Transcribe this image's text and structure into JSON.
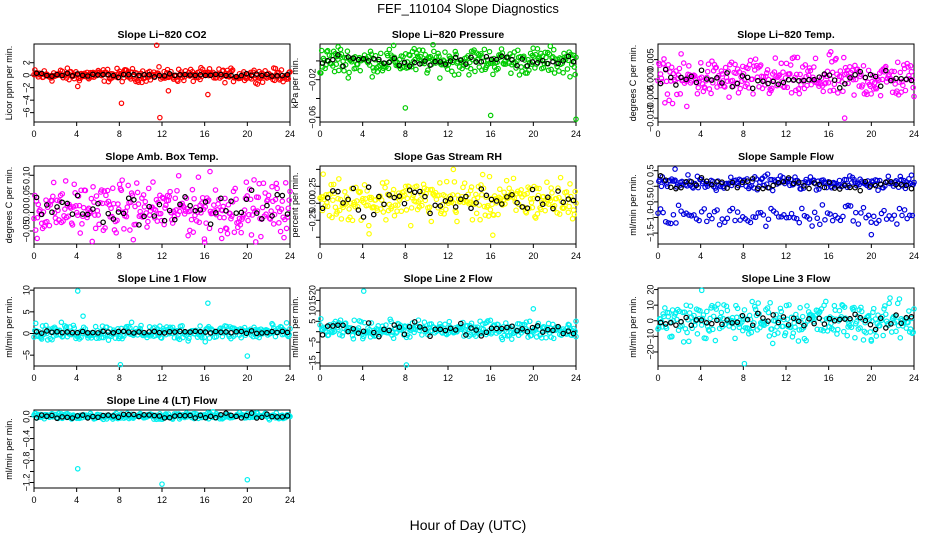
{
  "figure": {
    "title": "FEF_110104  Slope Diagnostics",
    "xlabel": "Hour of Day (UTC)"
  },
  "chart_data": [
    {
      "type": "scatter",
      "title": "Slope Li−820 CO2",
      "ylabel": "Licor ppm per min.",
      "color": "#ff0000",
      "xlim": [
        0,
        24
      ],
      "ylim": [
        -7.5,
        5
      ],
      "xticks": [
        0,
        4,
        8,
        12,
        16,
        20,
        24
      ],
      "yticks": [
        -6,
        -4,
        -2,
        0,
        2
      ],
      "ytick_labels": [
        "−6",
        "−4",
        "−2",
        "0",
        "2"
      ],
      "center": 0,
      "spread": 0.5,
      "black_spread": 0.15,
      "outliers": [
        [
          4.1,
          -1.8
        ],
        [
          8.2,
          -4.5
        ],
        [
          11.8,
          -6.8
        ],
        [
          11.5,
          4.8
        ],
        [
          12.6,
          -2.5
        ],
        [
          16.3,
          -3.1
        ]
      ]
    },
    {
      "type": "scatter",
      "title": "Slope Li−820 Pressure",
      "ylabel": "kPa per min.",
      "color": "#00cc00",
      "xlim": [
        0,
        24
      ],
      "ylim": [
        -0.065,
        0.018
      ],
      "xticks": [
        0,
        4,
        8,
        12,
        16,
        20,
        24
      ],
      "yticks": [
        -0.06,
        -0.04,
        -0.02,
        0
      ],
      "ytick_labels": [
        "−0.06",
        "",
        "−0.02",
        ""
      ],
      "center": 0,
      "spread": 0.007,
      "black_spread": 0.003,
      "outliers": [
        [
          8,
          -0.05
        ],
        [
          16,
          -0.058
        ],
        [
          24,
          -0.062
        ],
        [
          1.7,
          0.015
        ]
      ]
    },
    {
      "type": "scatter",
      "title": "Slope Li−820 Temp.",
      "ylabel": "degrees C per min.",
      "color": "#ff00ff",
      "xlim": [
        0,
        24
      ],
      "ylim": [
        -0.011,
        0.009
      ],
      "xticks": [
        0,
        4,
        8,
        12,
        16,
        20,
        24
      ],
      "yticks": [
        -0.01,
        -0.005,
        0,
        0.005
      ],
      "ytick_labels": [
        "−0.010",
        "−0.005",
        "0.000",
        "0.005"
      ],
      "center": 0,
      "spread": 0.0025,
      "black_spread": 0.0012,
      "outliers": [
        [
          17.5,
          -0.01
        ],
        [
          2.7,
          -0.007
        ],
        [
          16.2,
          0.007
        ]
      ]
    },
    {
      "type": "scatter",
      "title": "Slope Amb. Box Temp.",
      "ylabel": "degrees C per min.",
      "color": "#ff00ff",
      "xlim": [
        0,
        24
      ],
      "ylim": [
        -0.085,
        0.125
      ],
      "xticks": [
        0,
        4,
        8,
        12,
        16,
        20,
        24
      ],
      "yticks": [
        -0.05,
        0,
        0.05,
        0.1
      ],
      "ytick_labels": [
        "−0.05",
        "0.00",
        "0.05",
        "0.10"
      ],
      "center": 0.01,
      "spread": 0.035,
      "black_spread": 0.02,
      "outliers": [
        [
          0.3,
          -0.07
        ],
        [
          16,
          -0.08
        ],
        [
          17.6,
          -0.07
        ],
        [
          16.5,
          0.11
        ]
      ]
    },
    {
      "type": "scatter",
      "title": "Slope Gas Stream RH",
      "ylabel": "percent per min.",
      "color": "#ffff00",
      "xlim": [
        0,
        24
      ],
      "ylim": [
        -0.6,
        0.55
      ],
      "xticks": [
        0,
        4,
        8,
        12,
        16,
        20,
        24
      ],
      "yticks": [
        -0.5,
        -0.25,
        0,
        0.25,
        0.5
      ],
      "ytick_labels": [
        "",
        "−0.25",
        "0.00",
        "0.25",
        ""
      ],
      "center": 0.05,
      "spread": 0.15,
      "black_spread": 0.1,
      "outliers": [
        [
          4.6,
          -0.45
        ],
        [
          16.2,
          -0.47
        ],
        [
          0.3,
          0.43
        ],
        [
          12.5,
          0.5
        ]
      ]
    },
    {
      "type": "scatter",
      "title": "Slope Sample Flow",
      "ylabel": "ml/min per min.",
      "color": "#0000dd",
      "xlim": [
        0,
        24
      ],
      "ylim": [
        -1.85,
        0.65
      ],
      "xticks": [
        0,
        4,
        8,
        12,
        16,
        20,
        24
      ],
      "yticks": [
        -1.5,
        -1,
        -0.5,
        0,
        0.5
      ],
      "ytick_labels": [
        "−1.5",
        "−1.0",
        "−0.5",
        "0.0",
        "0.5"
      ],
      "center": 0.1,
      "spread": 0.12,
      "black_spread": 0.1,
      "band2": {
        "center": -0.95,
        "spread": 0.15
      },
      "outliers": [
        [
          20,
          -1.55
        ],
        [
          1.6,
          0.55
        ]
      ]
    },
    {
      "type": "scatter",
      "title": "Slope Line 1 Flow",
      "ylabel": "ml/min per min.",
      "color": "#00f0f0",
      "xlim": [
        0,
        24
      ],
      "ylim": [
        -7.5,
        10.5
      ],
      "xticks": [
        0,
        4,
        8,
        12,
        16,
        20,
        24
      ],
      "yticks": [
        -5,
        0,
        5,
        10
      ],
      "ytick_labels": [
        "−5",
        "0",
        "5",
        "10"
      ],
      "center": 0.3,
      "spread": 0.9,
      "black_spread": 0.15,
      "outliers": [
        [
          4.1,
          9.8
        ],
        [
          8.1,
          -7.2
        ],
        [
          20,
          -5.2
        ],
        [
          16.3,
          7
        ],
        [
          4.6,
          4
        ]
      ]
    },
    {
      "type": "scatter",
      "title": "Slope Line 2 Flow",
      "ylabel": "ml/min per min.",
      "color": "#00f0f0",
      "xlim": [
        0,
        24
      ],
      "ylim": [
        -16.5,
        21
      ],
      "xticks": [
        0,
        4,
        8,
        12,
        16,
        20,
        24
      ],
      "yticks": [
        -15,
        -10,
        -5,
        0,
        5,
        10,
        15,
        20
      ],
      "ytick_labels": [
        "−15",
        "",
        "−5",
        "",
        "5",
        "10",
        "15",
        "20"
      ],
      "center": 1,
      "spread": 2,
      "black_spread": 1.5,
      "outliers": [
        [
          4.1,
          19.5
        ],
        [
          8.1,
          -16
        ],
        [
          20,
          11
        ],
        [
          24,
          5
        ]
      ]
    },
    {
      "type": "scatter",
      "title": "Slope Line 3 Flow",
      "ylabel": "ml/min per min.",
      "color": "#00f0f0",
      "xlim": [
        0,
        24
      ],
      "ylim": [
        -29,
        21
      ],
      "xticks": [
        0,
        4,
        8,
        12,
        16,
        20,
        24
      ],
      "yticks": [
        -20,
        -10,
        0,
        10,
        20
      ],
      "ytick_labels": [
        "−20",
        "−10",
        "0",
        "10",
        "20"
      ],
      "center": 0,
      "spread": 6,
      "black_spread": 2.5,
      "outliers": [
        [
          4.1,
          19.5
        ],
        [
          8.1,
          -27.5
        ],
        [
          1.3,
          -10
        ],
        [
          20,
          -13
        ]
      ]
    },
    {
      "type": "scatter",
      "title": "Slope Line 4 (LT) Flow",
      "ylabel": "ml/min per min.",
      "color": "#00f0f0",
      "xlim": [
        0,
        24
      ],
      "ylim": [
        -1.3,
        0.12
      ],
      "xticks": [
        0,
        4,
        8,
        12,
        16,
        20,
        24
      ],
      "yticks": [
        -1.2,
        -1,
        -0.8,
        -0.6,
        -0.4,
        -0.2,
        0
      ],
      "ytick_labels": [
        "−1.2",
        "",
        "−0.8",
        "",
        "−0.4",
        "",
        "0.0"
      ],
      "center": 0.01,
      "spread": 0.03,
      "black_spread": 0.02,
      "outliers": [
        [
          4.1,
          -0.95
        ],
        [
          12,
          -1.23
        ],
        [
          20,
          -1.15
        ]
      ]
    }
  ]
}
